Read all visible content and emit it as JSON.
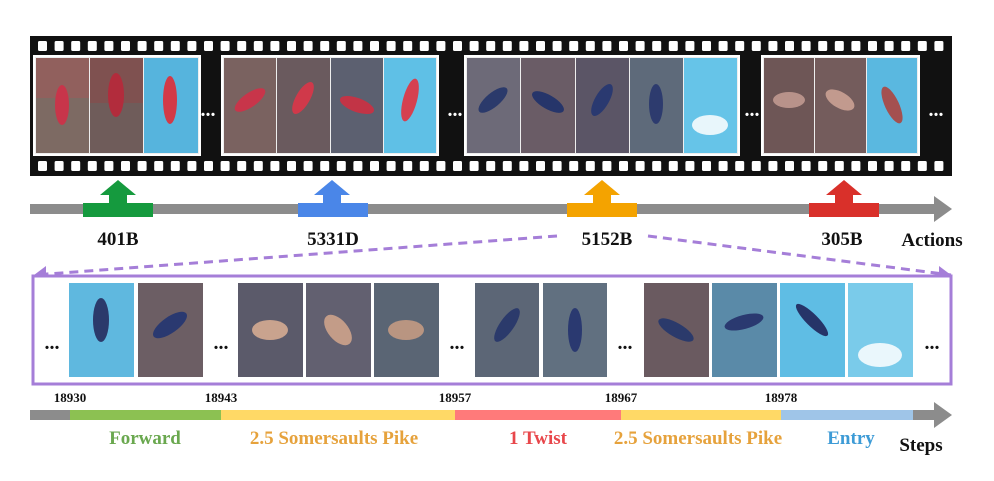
{
  "actions_axis_label": "Actions",
  "steps_axis_label": "Steps",
  "ellipsis": "...",
  "actions": [
    {
      "code": "401B",
      "color": "#159a3e"
    },
    {
      "code": "5331D",
      "color": "#4a86e8"
    },
    {
      "code": "5152B",
      "color": "#f4a300"
    },
    {
      "code": "305B",
      "color": "#d9302a"
    }
  ],
  "zoom_color": "#a57ed8",
  "frame_numbers": [
    "18930",
    "18943",
    "18957",
    "18967",
    "18978"
  ],
  "steps": [
    {
      "label": "Forward",
      "color": "#8cc152",
      "text_color": "#6aa84f"
    },
    {
      "label": "2.5 Somersaults Pike",
      "color": "#ffd966",
      "text_color": "#e6a23c"
    },
    {
      "label": "1 Twist",
      "color": "#ff7a7a",
      "text_color": "#e8474b"
    },
    {
      "label": "2.5 Somersaults Pike",
      "color": "#ffd966",
      "text_color": "#e6a23c"
    },
    {
      "label": "Entry",
      "color": "#9fc5e8",
      "text_color": "#3d9bd6"
    }
  ]
}
